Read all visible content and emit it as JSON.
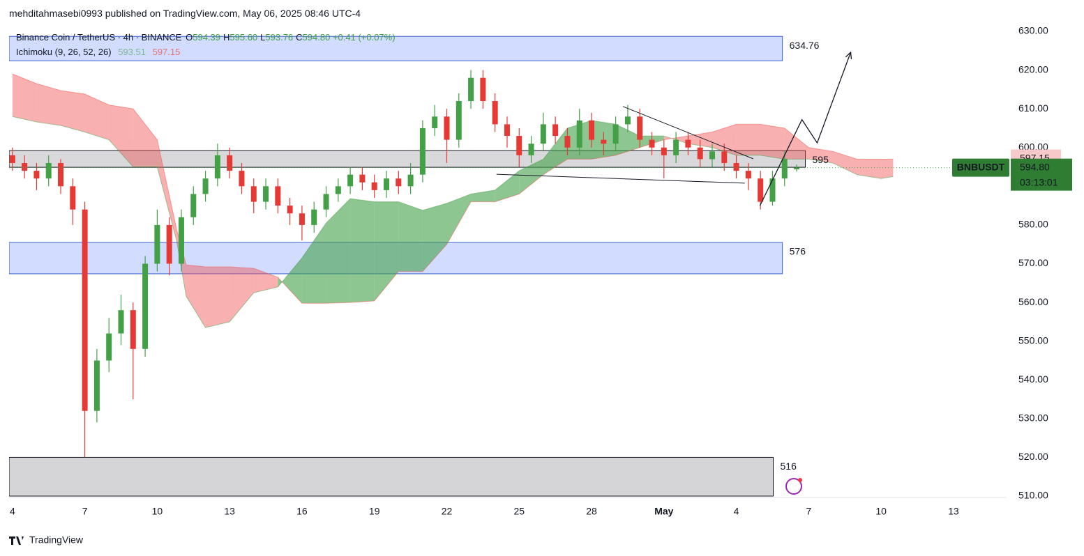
{
  "header": {
    "publisher": "mehditahmasebi0993 published on TradingView.com, May 06, 2025 08:46 UTC-4",
    "brand": "TradingView"
  },
  "chart_data": {
    "type": "candlestick",
    "symbol": "Binance Coin / TetherUS · 4h · BINANCE",
    "ohlc_letters": [
      "O",
      "H",
      "L",
      "C"
    ],
    "ohlc_labels": [
      "594.39",
      "595.60",
      "593.76",
      "594.80"
    ],
    "change": "+0.41 (+0.07%)",
    "ticker": "BNBUSDT",
    "countdown": "03:13:01",
    "ichimoku": {
      "label": "Ichimoku (9, 26, 52, 26)",
      "lead_a_value": 593.51,
      "lead_b_value": 597.15,
      "color_a": "#43a047",
      "color_b": "#ef5350"
    },
    "up_color": "#43a047",
    "down_color": "#e53935",
    "x": [
      0,
      0.5,
      1,
      1.5,
      2,
      2.5,
      3,
      3.5,
      4,
      4.5,
      5,
      5.5,
      6,
      6.5,
      7,
      7.5,
      8,
      8.5,
      9,
      9.5,
      10,
      10.5,
      11,
      11.5,
      12,
      12.5,
      13,
      13.5,
      14,
      14.5,
      15,
      15.5,
      16,
      16.5,
      17,
      17.5,
      18,
      18.5,
      19,
      19.5,
      20,
      20.5,
      21,
      21.5,
      22,
      22.5,
      23,
      23.5,
      24,
      24.5,
      25,
      25.5,
      26,
      26.5,
      27,
      27.5,
      28,
      28.5,
      29,
      29.5,
      30,
      30.5,
      31,
      31.5,
      32,
      32.5
    ],
    "open": [
      598,
      596,
      594,
      592,
      596,
      590,
      584,
      532,
      545,
      552,
      558,
      548,
      570,
      580,
      570,
      582,
      588,
      592,
      598,
      594,
      590,
      586,
      590,
      585,
      583,
      580,
      584,
      588,
      590,
      593,
      591,
      589,
      592,
      590,
      593,
      605,
      608,
      602,
      612,
      618,
      612,
      606,
      603,
      598,
      601,
      606,
      603,
      600,
      607,
      602,
      601,
      606,
      608,
      602,
      600,
      598,
      602,
      600,
      597,
      599,
      596,
      594,
      592,
      586,
      592,
      594.39
    ],
    "high": [
      600,
      598,
      596,
      598,
      597,
      592,
      586,
      548,
      556,
      562,
      560,
      572,
      584,
      582,
      584,
      590,
      594,
      601,
      600,
      596,
      592,
      592,
      592,
      587,
      585,
      586,
      590,
      592,
      595,
      595,
      593,
      594,
      594,
      596,
      607,
      611,
      610,
      614,
      620,
      620,
      614,
      608,
      605,
      603,
      609,
      608,
      605,
      610,
      609,
      604,
      608,
      611,
      610,
      604,
      602,
      604,
      604,
      602,
      601,
      601,
      598,
      596,
      594,
      594,
      599,
      595.6
    ],
    "low": [
      594,
      592,
      589,
      590,
      588,
      580,
      520,
      529,
      542,
      549,
      535,
      546,
      568,
      567,
      568,
      580,
      586,
      590,
      592,
      588,
      583,
      584,
      583,
      580,
      576,
      578,
      582,
      586,
      588,
      589,
      587,
      587,
      588,
      588,
      591,
      603,
      596,
      600,
      610,
      610,
      604,
      600,
      595,
      596,
      599,
      601,
      598,
      598,
      600,
      598,
      599,
      604,
      600,
      598,
      592,
      596,
      598,
      595,
      595,
      594,
      592,
      589,
      584,
      585,
      590,
      593.76
    ],
    "close": [
      596,
      594,
      592,
      596,
      590,
      584,
      532,
      545,
      552,
      558,
      548,
      570,
      580,
      570,
      582,
      588,
      592,
      598,
      594,
      590,
      586,
      590,
      585,
      583,
      580,
      584,
      588,
      590,
      593,
      591,
      589,
      592,
      590,
      593,
      605,
      608,
      602,
      612,
      618,
      612,
      606,
      603,
      598,
      601,
      606,
      603,
      600,
      607,
      602,
      601,
      606,
      608,
      602,
      600,
      598,
      602,
      600,
      597,
      599,
      596,
      594,
      592,
      586,
      592,
      597,
      594.8
    ],
    "cloud_x": [
      0,
      1,
      2,
      3,
      4,
      5,
      6,
      6.8,
      7.2,
      8,
      9,
      10,
      11,
      12,
      13,
      14,
      15,
      16,
      17,
      18,
      19,
      20,
      21,
      22,
      23,
      24,
      25,
      26,
      27,
      28,
      29,
      30,
      31,
      32,
      33,
      34,
      35,
      36,
      36.5
    ],
    "span_a": [
      608,
      606.6,
      605.7,
      604,
      602,
      595,
      595,
      576,
      561.6,
      553.5,
      555,
      562.5,
      564,
      571.5,
      580.5,
      586.8,
      586,
      586,
      583.8,
      585.6,
      588,
      589,
      594,
      597,
      605,
      607,
      606,
      603,
      603,
      601,
      600,
      598,
      598,
      597,
      597,
      596,
      593,
      592,
      592.5
    ],
    "span_b": [
      619,
      616.5,
      614.7,
      613.8,
      611,
      610,
      602,
      579,
      569.7,
      569.2,
      569.2,
      568.8,
      566.5,
      559.8,
      559.8,
      560,
      560.4,
      568,
      568,
      575,
      586,
      586,
      588,
      593,
      597,
      597,
      598,
      600,
      602,
      603,
      604,
      606,
      606,
      605,
      600,
      599,
      597,
      597,
      597
    ],
    "zones": [
      {
        "top": 628.7,
        "bottom": 622.4,
        "end": 31.91,
        "color": "#d1dcff",
        "border": "#3c5fd1",
        "label": 634.76
      },
      {
        "top": 599.2,
        "bottom": 594.9,
        "end": 32.86,
        "color": "#d9d9dc",
        "border": "#131722",
        "label": 595
      },
      {
        "top": 575.5,
        "bottom": 567.4,
        "end": 31.91,
        "color": "#d1dcff",
        "border": "#3c5fd1",
        "label": 576
      },
      {
        "top": 520,
        "bottom": 510,
        "end": 31.53,
        "color": "#d5d5d8",
        "border": "#131722",
        "label": 516
      }
    ],
    "trendlines": [
      {
        "x": [
          25.3,
          30.7
        ],
        "y": [
          610.6,
          597.1
        ]
      },
      {
        "x": [
          20.06,
          30.35
        ],
        "y": [
          593.1,
          590.8
        ]
      }
    ],
    "arrow": {
      "x": [
        30.98,
        32.72,
        33.35,
        34.74
      ],
      "y": [
        585,
        607.2,
        601.2,
        624.6
      ]
    },
    "xlim": [
      -0.14,
      41.2
    ],
    "ylim": [
      510,
      630
    ],
    "yticks": [
      {
        "value": 630,
        "label": "630.00"
      },
      {
        "value": 620,
        "label": "620.00"
      },
      {
        "value": 610,
        "label": "610.00"
      },
      {
        "value": 600,
        "label": "600.00"
      },
      {
        "value": 590,
        "label": "590.00"
      },
      {
        "value": 580,
        "label": "580.00"
      },
      {
        "value": 570,
        "label": "570.00"
      },
      {
        "value": 560,
        "label": "560.00"
      },
      {
        "value": 550,
        "label": "550.00"
      },
      {
        "value": 540,
        "label": "540.00"
      },
      {
        "value": 530,
        "label": "530.00"
      },
      {
        "value": 520,
        "label": "520.00"
      },
      {
        "value": 510,
        "label": "510.00"
      }
    ],
    "xticks": [
      {
        "value": 0,
        "label": "4"
      },
      {
        "value": 3,
        "label": "7"
      },
      {
        "value": 6,
        "label": "10"
      },
      {
        "value": 9,
        "label": "13"
      },
      {
        "value": 12,
        "label": "16"
      },
      {
        "value": 15,
        "label": "19"
      },
      {
        "value": 18,
        "label": "22"
      },
      {
        "value": 21,
        "label": "25"
      },
      {
        "value": 24,
        "label": "28"
      },
      {
        "value": 27,
        "label": "May"
      },
      {
        "value": 30,
        "label": "4"
      },
      {
        "value": 33,
        "label": "7"
      },
      {
        "value": 36,
        "label": "10"
      },
      {
        "value": 39,
        "label": "13"
      }
    ]
  }
}
